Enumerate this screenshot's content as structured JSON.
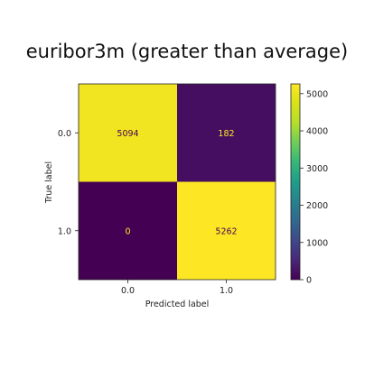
{
  "chart_data": {
    "type": "heatmap",
    "title": "euribor3m (greater than average)",
    "xlabel": "Predicted label",
    "ylabel": "True label",
    "x_categories": [
      "0.0",
      "1.0"
    ],
    "y_categories": [
      "0.0",
      "1.0"
    ],
    "values": [
      [
        5094,
        182
      ],
      [
        0,
        5262
      ]
    ],
    "value_labels": [
      [
        "5094",
        "182"
      ],
      [
        "0",
        "5262"
      ]
    ],
    "colormap": "viridis",
    "colors": {
      "low": "#440154",
      "mid": "#21908d",
      "high": "#fde725",
      "text_on_dark": "#fde725",
      "text_on_light": "#440154"
    },
    "colorbar": {
      "ticks": [
        0,
        1000,
        2000,
        3000,
        4000,
        5000
      ],
      "tick_labels": [
        "0",
        "1000",
        "2000",
        "3000",
        "4000",
        "5000"
      ],
      "range": [
        0,
        5262
      ]
    },
    "grid": false
  }
}
